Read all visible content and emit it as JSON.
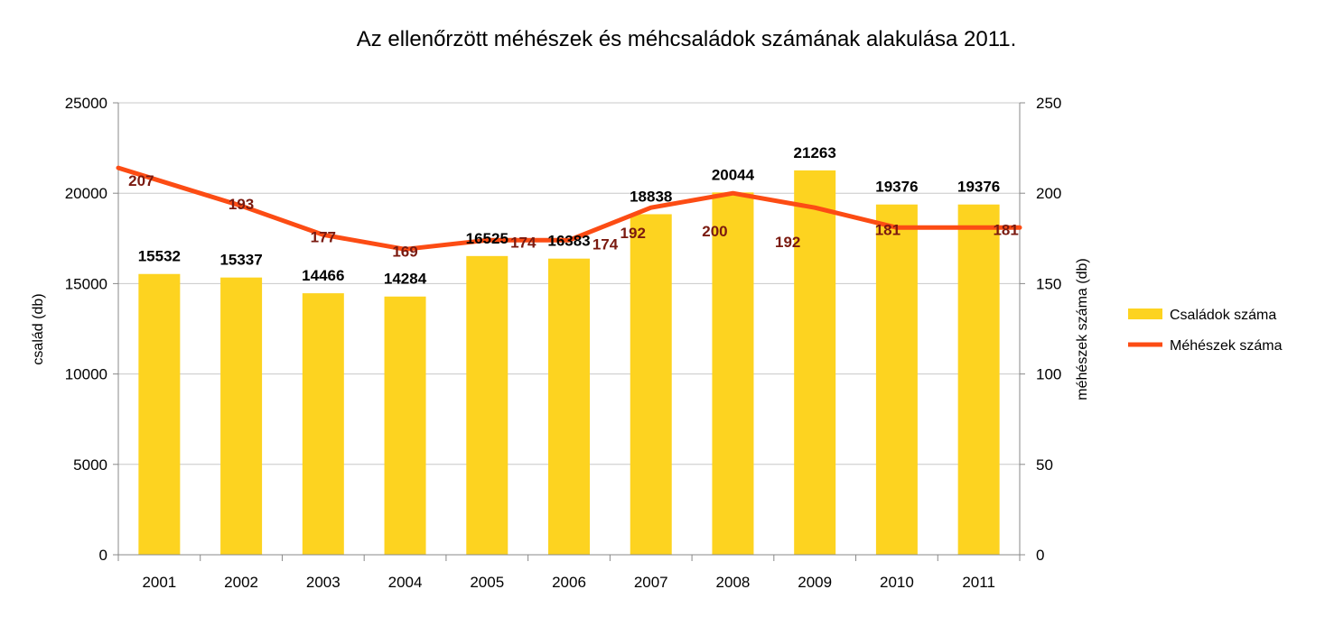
{
  "chart_data": {
    "type": "bar",
    "title": "Az ellenőrzött méhészek és méhcsaládok számának alakulása 2011.",
    "categories": [
      "2001",
      "2002",
      "2003",
      "2004",
      "2005",
      "2006",
      "2007",
      "2008",
      "2009",
      "2010",
      "2011"
    ],
    "series": [
      {
        "name": "Családok száma",
        "type": "bar",
        "axis": "left",
        "color": "#FDD320",
        "values": [
          15532,
          15337,
          14466,
          14284,
          16525,
          16383,
          18838,
          20044,
          21263,
          19376,
          19376
        ],
        "labels": [
          "15532",
          "15337",
          "14466",
          "14284",
          "16525",
          "16383",
          "18838",
          "20044",
          "21263",
          "19376",
          "19376"
        ]
      },
      {
        "name": "Méhészek száma",
        "type": "line",
        "axis": "right",
        "color": "#FC4C14",
        "values": [
          207,
          193,
          177,
          169,
          174,
          174,
          192,
          200,
          192,
          181,
          181
        ],
        "labels": [
          "207",
          "193",
          "177",
          "169",
          "174",
          "174",
          "192",
          "200",
          "192",
          "181",
          "181"
        ]
      }
    ],
    "y_left": {
      "label": "család (db)",
      "min": 0,
      "max": 25000,
      "ticks": [
        "0",
        "5000",
        "10000",
        "15000",
        "20000",
        "25000"
      ]
    },
    "y_right": {
      "label": "méhészek száma (db)",
      "min": 0,
      "max": 250,
      "ticks": [
        "0",
        "50",
        "100",
        "150",
        "200",
        "250"
      ]
    },
    "grid": true,
    "legend_position": "right"
  }
}
